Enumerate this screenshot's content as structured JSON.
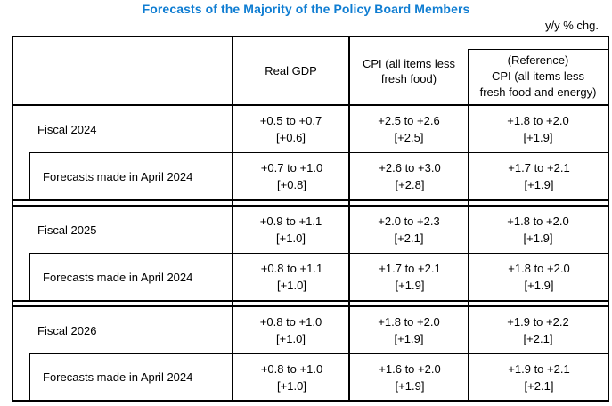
{
  "title": "Forecasts of the Majority of the Policy Board Members",
  "unit_note": "y/y % chg.",
  "colors": {
    "title_blue": "#0f7dd2",
    "line": "#000000",
    "background": "#ffffff"
  },
  "header": {
    "real_gdp": "Real GDP",
    "cpi": [
      "CPI (all items less",
      "fresh food)"
    ],
    "reference": [
      "(Reference)",
      "CPI (all items less",
      "fresh food and energy)"
    ]
  },
  "groups": [
    {
      "fiscal": {
        "label": "Fiscal 2024",
        "gdp": {
          "range": "+0.5 to +0.7",
          "median": "[+0.6]"
        },
        "cpi": {
          "range": "+2.5 to +2.6",
          "median": "[+2.5]"
        },
        "ref": {
          "range": "+1.8 to +2.0",
          "median": "[+1.9]"
        }
      },
      "april": {
        "label": "Forecasts made in April 2024",
        "gdp": {
          "range": "+0.7 to +1.0",
          "median": "[+0.8]"
        },
        "cpi": {
          "range": "+2.6 to +3.0",
          "median": "[+2.8]"
        },
        "ref": {
          "range": "+1.7 to +2.1",
          "median": "[+1.9]"
        }
      }
    },
    {
      "fiscal": {
        "label": "Fiscal 2025",
        "gdp": {
          "range": "+0.9 to +1.1",
          "median": "[+1.0]"
        },
        "cpi": {
          "range": "+2.0 to +2.3",
          "median": "[+2.1]"
        },
        "ref": {
          "range": "+1.8 to +2.0",
          "median": "[+1.9]"
        }
      },
      "april": {
        "label": "Forecasts made in April 2024",
        "gdp": {
          "range": "+0.8 to +1.1",
          "median": "[+1.0]"
        },
        "cpi": {
          "range": "+1.7 to +2.1",
          "median": "[+1.9]"
        },
        "ref": {
          "range": "+1.8 to +2.0",
          "median": "[+1.9]"
        }
      }
    },
    {
      "fiscal": {
        "label": "Fiscal 2026",
        "gdp": {
          "range": "+0.8 to +1.0",
          "median": "[+1.0]"
        },
        "cpi": {
          "range": "+1.8 to +2.0",
          "median": "[+1.9]"
        },
        "ref": {
          "range": "+1.9 to +2.2",
          "median": "[+2.1]"
        }
      },
      "april": {
        "label": "Forecasts made in April 2024",
        "gdp": {
          "range": "+0.8 to +1.0",
          "median": "[+1.0]"
        },
        "cpi": {
          "range": "+1.6 to +2.0",
          "median": "[+1.9]"
        },
        "ref": {
          "range": "+1.9 to +2.1",
          "median": "[+2.1]"
        }
      }
    }
  ]
}
